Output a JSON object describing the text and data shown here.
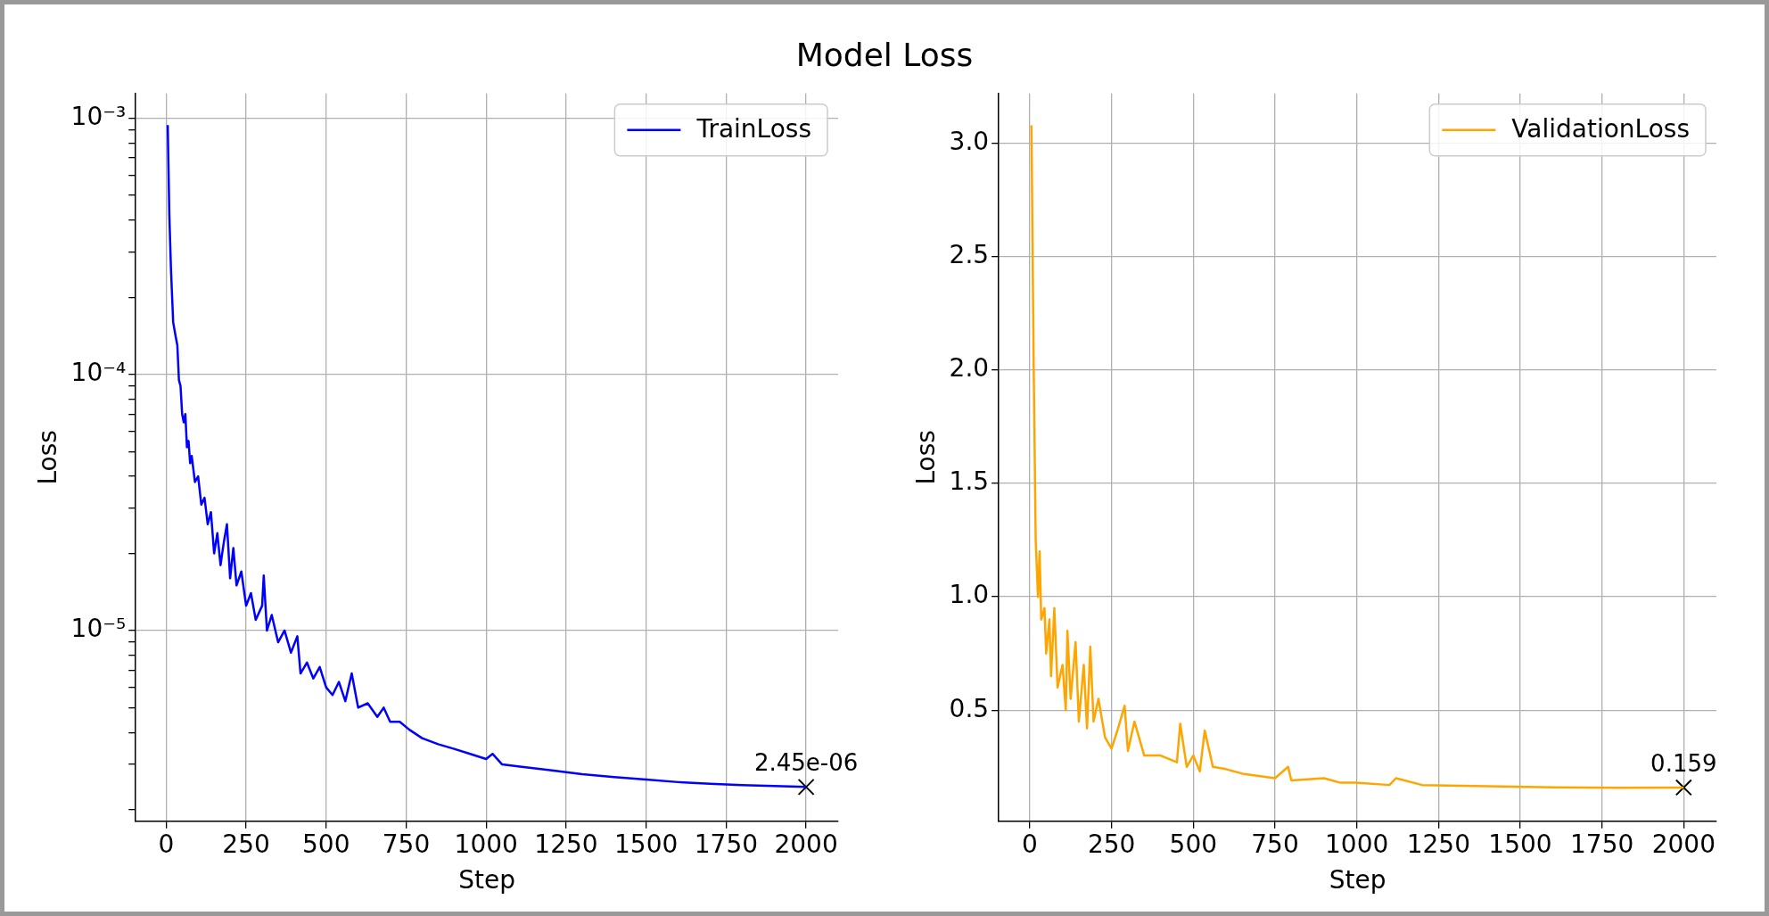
{
  "chart_data": [
    {
      "type": "line",
      "title": "Model Loss",
      "xlabel": "Step",
      "ylabel": "Loss",
      "log": "y",
      "grid": true,
      "legend": "top right",
      "xlim": [
        -95,
        2100
      ],
      "xticks": [
        0,
        250,
        500,
        750,
        1000,
        1250,
        1500,
        1750,
        2000
      ],
      "ylim": [
        1.8e-06,
        0.00125
      ],
      "yticks": [
        {
          "value": 2e-06,
          "label": null
        },
        {
          "value": 3e-06,
          "label": null
        },
        {
          "value": 4e-06,
          "label": null
        },
        {
          "value": 5e-06,
          "label": null
        },
        {
          "value": 6e-06,
          "label": null
        },
        {
          "value": 7e-06,
          "label": null
        },
        {
          "value": 8e-06,
          "label": null
        },
        {
          "value": 9e-06,
          "label": null
        },
        {
          "value": 1e-05,
          "label": "10⁻⁵"
        },
        {
          "value": 2e-05,
          "label": null
        },
        {
          "value": 3e-05,
          "label": null
        },
        {
          "value": 4e-05,
          "label": null
        },
        {
          "value": 5e-05,
          "label": null
        },
        {
          "value": 6e-05,
          "label": null
        },
        {
          "value": 7e-05,
          "label": null
        },
        {
          "value": 8e-05,
          "label": null
        },
        {
          "value": 9e-05,
          "label": null
        },
        {
          "value": 0.0001,
          "label": "10⁻⁴"
        },
        {
          "value": 0.0002,
          "label": null
        },
        {
          "value": 0.0003,
          "label": null
        },
        {
          "value": 0.0004,
          "label": null
        },
        {
          "value": 0.0005,
          "label": null
        },
        {
          "value": 0.0006,
          "label": null
        },
        {
          "value": 0.0007,
          "label": null
        },
        {
          "value": 0.0008,
          "label": null
        },
        {
          "value": 0.0009,
          "label": null
        },
        {
          "value": 0.001,
          "label": "10⁻³"
        }
      ],
      "annotations": [
        {
          "text": "2.45e-06",
          "x": 2000,
          "y": 2.45e-06
        }
      ],
      "series": [
        {
          "name": "TrainLoss",
          "color": "#0000ff",
          "x": [
            5,
            10,
            15,
            22,
            30,
            35,
            40,
            45,
            50,
            55,
            60,
            65,
            70,
            75,
            80,
            90,
            100,
            110,
            120,
            130,
            140,
            150,
            160,
            170,
            180,
            190,
            200,
            210,
            220,
            235,
            250,
            265,
            280,
            300,
            305,
            315,
            330,
            350,
            370,
            390,
            410,
            420,
            440,
            460,
            480,
            500,
            520,
            540,
            560,
            580,
            600,
            630,
            660,
            680,
            700,
            730,
            760,
            800,
            850,
            900,
            950,
            1000,
            1020,
            1050,
            1100,
            1200,
            1300,
            1400,
            1500,
            1600,
            1700,
            1800,
            1900,
            2000
          ],
          "values": [
            0.00094,
            0.00042,
            0.00026,
            0.00016,
            0.00014,
            0.00013,
            9.5e-05,
            9e-05,
            7e-05,
            6.5e-05,
            7e-05,
            5.2e-05,
            5.5e-05,
            4.5e-05,
            4.8e-05,
            3.8e-05,
            4e-05,
            3.1e-05,
            3.3e-05,
            2.6e-05,
            2.9e-05,
            2e-05,
            2.4e-05,
            1.8e-05,
            2.2e-05,
            2.6e-05,
            1.6e-05,
            2.1e-05,
            1.5e-05,
            1.7e-05,
            1.25e-05,
            1.4e-05,
            1.1e-05,
            1.25e-05,
            1.64e-05,
            1e-05,
            1.15e-05,
            9e-06,
            1e-05,
            8.2e-06,
            9.5e-06,
            6.8e-06,
            7.5e-06,
            6.5e-06,
            7.2e-06,
            6e-06,
            5.6e-06,
            6.3e-06,
            5.3e-06,
            6.8e-06,
            5e-06,
            5.2e-06,
            4.6e-06,
            5e-06,
            4.4e-06,
            4.4e-06,
            4.1e-06,
            3.8e-06,
            3.6e-06,
            3.45e-06,
            3.3e-06,
            3.15e-06,
            3.3e-06,
            3e-06,
            2.95e-06,
            2.85e-06,
            2.75e-06,
            2.68e-06,
            2.62e-06,
            2.56e-06,
            2.52e-06,
            2.49e-06,
            2.47e-06,
            2.45e-06
          ]
        },
        {
          "type": "scatter",
          "color": "#000000",
          "marker": "cross",
          "x": [
            2000
          ],
          "values": [
            2.45e-06
          ]
        }
      ]
    },
    {
      "type": "line",
      "xlabel": "Step",
      "ylabel": "Loss",
      "grid": true,
      "legend": "top right",
      "xlim": [
        -95,
        2100
      ],
      "xticks": [
        0,
        250,
        500,
        750,
        1000,
        1250,
        1500,
        1750,
        2000
      ],
      "ylim": [
        0.01,
        3.22
      ],
      "yticks": [
        0.5,
        {
          "value": 1,
          "label": "1.0"
        },
        1.5,
        {
          "value": 2,
          "label": "2.0"
        },
        2.5,
        {
          "value": 3,
          "label": "3.0"
        }
      ],
      "annotations": [
        {
          "text": "0.159",
          "x": 2000,
          "y": 0.159
        }
      ],
      "series": [
        {
          "name": "ValidationLoss",
          "color": "#ffa500",
          "x": [
            5,
            12,
            18,
            25,
            30,
            35,
            45,
            50,
            60,
            65,
            75,
            85,
            100,
            110,
            115,
            125,
            140,
            150,
            165,
            175,
            185,
            195,
            210,
            230,
            250,
            270,
            290,
            300,
            320,
            350,
            400,
            450,
            460,
            480,
            500,
            520,
            535,
            560,
            600,
            650,
            700,
            750,
            790,
            800,
            900,
            950,
            1000,
            1100,
            1120,
            1200,
            1400,
            1600,
            1800,
            2000
          ],
          "values": [
            3.08,
            2.0,
            1.25,
            1.0,
            1.2,
            0.9,
            0.95,
            0.75,
            0.9,
            0.65,
            0.95,
            0.6,
            0.7,
            0.5,
            0.85,
            0.55,
            0.8,
            0.45,
            0.7,
            0.42,
            0.78,
            0.45,
            0.55,
            0.38,
            0.33,
            0.42,
            0.52,
            0.32,
            0.45,
            0.3,
            0.3,
            0.27,
            0.44,
            0.25,
            0.3,
            0.23,
            0.41,
            0.25,
            0.24,
            0.22,
            0.21,
            0.2,
            0.25,
            0.19,
            0.2,
            0.18,
            0.18,
            0.17,
            0.2,
            0.17,
            0.165,
            0.16,
            0.158,
            0.159
          ]
        },
        {
          "type": "scatter",
          "color": "#000000",
          "marker": "cross",
          "x": [
            2000
          ],
          "values": [
            0.159
          ]
        }
      ]
    }
  ]
}
